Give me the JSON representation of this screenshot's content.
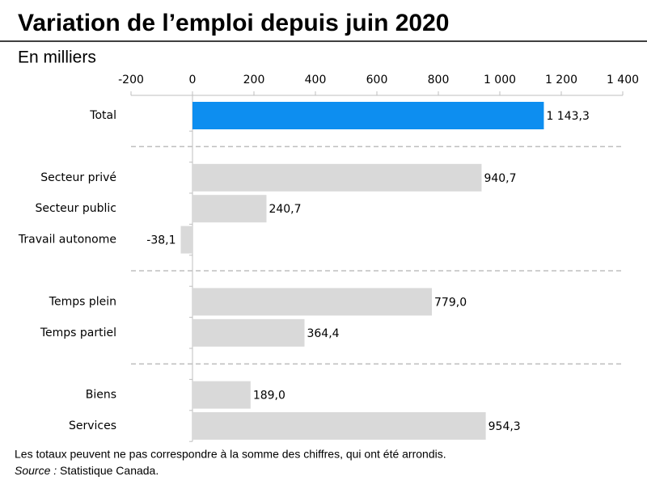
{
  "chart_data": {
    "type": "hbar",
    "title": "Variation de l’emploi depuis juin 2020",
    "subtitle": "En milliers",
    "categories": [
      "Total",
      null,
      "Secteur privé",
      "Secteur public",
      "Travail autonome",
      null,
      "Temps plein",
      "Temps partiel",
      null,
      "Biens",
      "Services"
    ],
    "values": [
      1143.3,
      null,
      940.7,
      240.7,
      -38.1,
      null,
      779.0,
      364.4,
      null,
      189.0,
      954.3
    ],
    "value_labels": [
      "1 143,3",
      null,
      "940,7",
      "240,7",
      "-38,1",
      null,
      "779,0",
      "364,4",
      null,
      "189,0",
      "954,3"
    ],
    "colors": [
      "#0d8ef0",
      null,
      "#d9d9d9",
      "#d9d9d9",
      "#d9d9d9",
      null,
      "#d9d9d9",
      "#d9d9d9",
      null,
      "#d9d9d9",
      "#d9d9d9"
    ],
    "xlim": [
      -200,
      1400
    ],
    "xticks": [
      -200,
      0,
      200,
      400,
      600,
      800,
      {
        "value": 1000,
        "label": "1 000"
      },
      {
        "value": 1200,
        "label": "1 200"
      },
      {
        "value": 1400,
        "label": "1 400"
      }
    ],
    "note": "Les totaux peuvent ne pas correspondre à la somme des chiffres, qui ont été arrondis.",
    "source_label": "Source :",
    "source": "Statistique Canada."
  }
}
